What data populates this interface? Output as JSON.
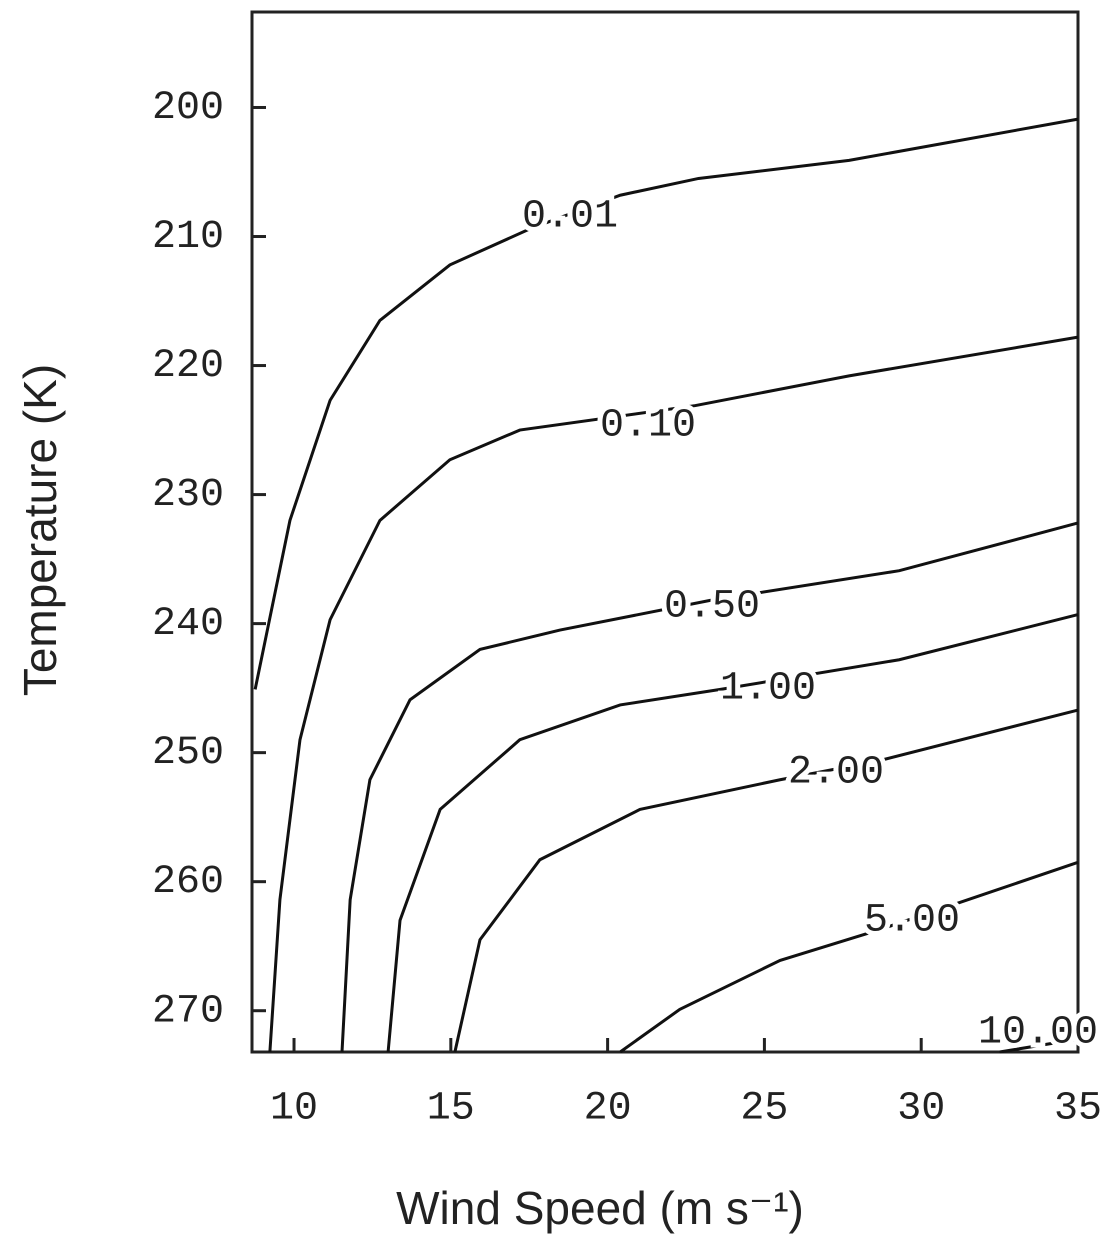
{
  "chart_data": {
    "type": "contour",
    "x_label": "Wind Speed (m s⁻¹)",
    "y_label": "Temperature (K)",
    "xlim": [
      8.66,
      35
    ],
    "xticks": [
      10,
      15,
      20,
      25,
      30,
      35
    ],
    "ylim": [
      192.6,
      273.2
    ],
    "yticks": [
      200,
      210,
      220,
      230,
      240,
      250,
      260,
      270
    ],
    "y_inverted": true,
    "color": "#111111",
    "series": [
      {
        "name": "0.01",
        "x": [
          8.76,
          9.87,
          11.15,
          12.74,
          14.97,
          17.53,
          20.4,
          22.9,
          27.7,
          35
        ],
        "values": [
          245.1,
          232.0,
          222.7,
          216.5,
          212.2,
          209.4,
          206.8,
          205.5,
          204.1,
          200.9
        ]
      },
      {
        "name": "0.10",
        "x": [
          9.23,
          9.55,
          10.19,
          11.15,
          12.74,
          14.97,
          17.2,
          22.8,
          27.7,
          35
        ],
        "values": [
          273.2,
          261.4,
          249.0,
          239.7,
          232.0,
          227.3,
          225.0,
          223.1,
          220.8,
          217.8
        ]
      },
      {
        "name": "0.50",
        "x": [
          11.53,
          11.79,
          12.42,
          13.7,
          15.93,
          18.48,
          23.27,
          29.3,
          35
        ],
        "values": [
          273.2,
          261.4,
          252.1,
          245.9,
          242.0,
          240.5,
          238.2,
          235.9,
          232.2
        ]
      },
      {
        "name": "1.00",
        "x": [
          13.0,
          13.38,
          14.66,
          17.2,
          20.4,
          23.6,
          29.3,
          35
        ],
        "values": [
          273.2,
          263.0,
          254.4,
          249.0,
          246.3,
          245.1,
          242.8,
          239.3
        ]
      },
      {
        "name": "2.00",
        "x": [
          15.13,
          15.93,
          17.84,
          21.03,
          25.5,
          28.7,
          35
        ],
        "values": [
          273.2,
          264.5,
          258.3,
          254.4,
          252.1,
          250.6,
          246.7
        ]
      },
      {
        "name": "5.00",
        "x": [
          20.4,
          22.3,
          25.5,
          28.7,
          35
        ],
        "values": [
          273.2,
          269.9,
          266.1,
          263.7,
          258.5
        ]
      },
      {
        "name": "10.00",
        "x": [
          32.5,
          35
        ],
        "values": [
          273.2,
          272.2
        ]
      }
    ]
  }
}
